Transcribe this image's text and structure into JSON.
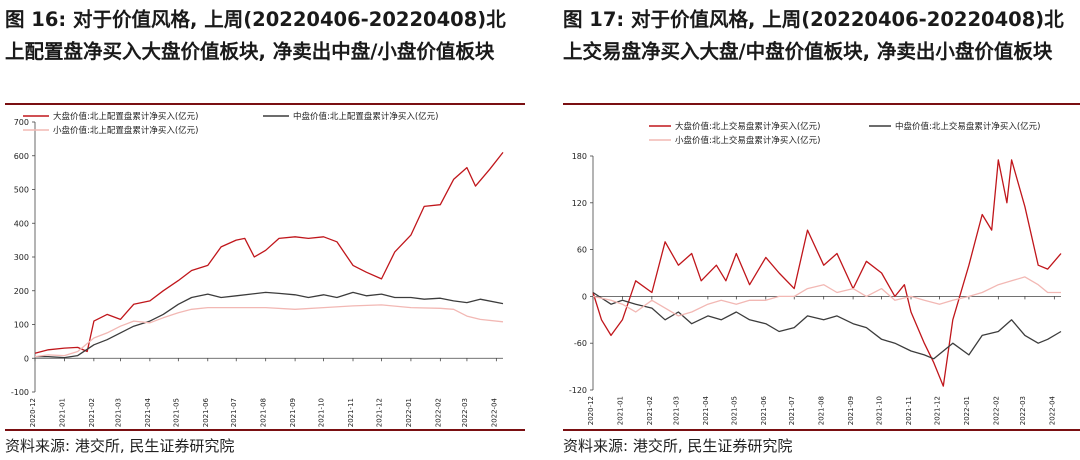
{
  "panels": [
    {
      "title": "图 16: 对于价值风格, 上周(20220406-20220408)北上配置盘净买入大盘价值板块, 净卖出中盘/小盘价值板块",
      "source": "资料来源: 港交所, 民生证券研究院"
    },
    {
      "title": "图 17: 对于价值风格, 上周(20220406-20220408)北上交易盘净买入大盘/中盘价值板块, 净卖出小盘价值板块",
      "source": "资料来源: 港交所, 民生证券研究院"
    }
  ],
  "chart_data": [
    {
      "type": "line",
      "title": "",
      "xlabel": "",
      "ylabel": "",
      "ylim": [
        -100,
        700
      ],
      "yticks": [
        -100,
        0,
        100,
        200,
        300,
        400,
        500,
        600,
        700
      ],
      "xlim": [
        "2020-12",
        "2022-04-08"
      ],
      "xticks": [
        "2020-12",
        "2021-01",
        "2021-02",
        "2021-03",
        "2021-04",
        "2021-05",
        "2021-06",
        "2021-07",
        "2021-08",
        "2021-09",
        "2021-10",
        "2021-11",
        "2021-12",
        "2022-01",
        "2022-02",
        "2022-03",
        "2022-04"
      ],
      "grid": false,
      "legend_position": "top",
      "series": [
        {
          "name": "大盘价值:北上配置盘累计净买入(亿元)",
          "color": "#c0161b",
          "points": [
            [
              "2020-12-01",
              15
            ],
            [
              "2020-12-15",
              25
            ],
            [
              "2021-01-01",
              30
            ],
            [
              "2021-01-15",
              32
            ],
            [
              "2021-01-25",
              20
            ],
            [
              "2021-02-01",
              110
            ],
            [
              "2021-02-15",
              130
            ],
            [
              "2021-03-01",
              115
            ],
            [
              "2021-03-15",
              160
            ],
            [
              "2021-04-01",
              170
            ],
            [
              "2021-04-15",
              200
            ],
            [
              "2021-05-01",
              230
            ],
            [
              "2021-05-15",
              260
            ],
            [
              "2021-06-01",
              275
            ],
            [
              "2021-06-15",
              330
            ],
            [
              "2021-07-01",
              350
            ],
            [
              "2021-07-10",
              355
            ],
            [
              "2021-07-20",
              300
            ],
            [
              "2021-08-01",
              320
            ],
            [
              "2021-08-15",
              355
            ],
            [
              "2021-09-01",
              360
            ],
            [
              "2021-09-15",
              355
            ],
            [
              "2021-10-01",
              360
            ],
            [
              "2021-10-15",
              345
            ],
            [
              "2021-11-01",
              275
            ],
            [
              "2021-11-15",
              255
            ],
            [
              "2021-12-01",
              235
            ],
            [
              "2021-12-15",
              315
            ],
            [
              "2022-01-01",
              365
            ],
            [
              "2022-01-15",
              450
            ],
            [
              "2022-02-01",
              455
            ],
            [
              "2022-02-15",
              530
            ],
            [
              "2022-03-01",
              565
            ],
            [
              "2022-03-10",
              510
            ],
            [
              "2022-03-25",
              560
            ],
            [
              "2022-04-08",
              610
            ]
          ]
        },
        {
          "name": "中盘价值:北上配置盘累计净买入(亿元)",
          "color": "#3c3c3c",
          "points": [
            [
              "2020-12-01",
              5
            ],
            [
              "2020-12-15",
              5
            ],
            [
              "2021-01-01",
              2
            ],
            [
              "2021-01-15",
              8
            ],
            [
              "2021-02-01",
              40
            ],
            [
              "2021-02-15",
              55
            ],
            [
              "2021-03-01",
              75
            ],
            [
              "2021-03-15",
              95
            ],
            [
              "2021-04-01",
              110
            ],
            [
              "2021-04-15",
              130
            ],
            [
              "2021-05-01",
              160
            ],
            [
              "2021-05-15",
              180
            ],
            [
              "2021-06-01",
              190
            ],
            [
              "2021-06-15",
              180
            ],
            [
              "2021-07-01",
              185
            ],
            [
              "2021-08-01",
              195
            ],
            [
              "2021-08-15",
              192
            ],
            [
              "2021-09-01",
              188
            ],
            [
              "2021-09-15",
              180
            ],
            [
              "2021-10-01",
              188
            ],
            [
              "2021-10-15",
              180
            ],
            [
              "2021-11-01",
              195
            ],
            [
              "2021-11-15",
              185
            ],
            [
              "2021-12-01",
              190
            ],
            [
              "2021-12-15",
              180
            ],
            [
              "2022-01-01",
              180
            ],
            [
              "2022-01-15",
              175
            ],
            [
              "2022-02-01",
              178
            ],
            [
              "2022-02-15",
              170
            ],
            [
              "2022-03-01",
              165
            ],
            [
              "2022-03-15",
              175
            ],
            [
              "2022-04-08",
              162
            ]
          ]
        },
        {
          "name": "小盘价值:北上配置盘累计净买入(亿元)",
          "color": "#f2b8b4",
          "points": [
            [
              "2020-12-01",
              5
            ],
            [
              "2020-12-15",
              10
            ],
            [
              "2021-01-01",
              8
            ],
            [
              "2021-01-15",
              20
            ],
            [
              "2021-02-01",
              60
            ],
            [
              "2021-02-15",
              75
            ],
            [
              "2021-03-01",
              95
            ],
            [
              "2021-03-15",
              110
            ],
            [
              "2021-04-01",
              105
            ],
            [
              "2021-04-15",
              120
            ],
            [
              "2021-05-01",
              135
            ],
            [
              "2021-05-15",
              145
            ],
            [
              "2021-06-01",
              150
            ],
            [
              "2021-07-01",
              150
            ],
            [
              "2021-08-01",
              150
            ],
            [
              "2021-09-01",
              145
            ],
            [
              "2021-10-01",
              150
            ],
            [
              "2021-11-01",
              155
            ],
            [
              "2021-12-01",
              158
            ],
            [
              "2022-01-01",
              150
            ],
            [
              "2022-02-01",
              148
            ],
            [
              "2022-02-15",
              145
            ],
            [
              "2022-03-01",
              125
            ],
            [
              "2022-03-15",
              115
            ],
            [
              "2022-04-08",
              108
            ]
          ]
        }
      ]
    },
    {
      "type": "line",
      "title": "",
      "xlabel": "",
      "ylabel": "",
      "ylim": [
        -120,
        180
      ],
      "yticks": [
        -120,
        -60,
        0,
        60,
        120,
        180
      ],
      "xlim": [
        "2020-12",
        "2022-04-08"
      ],
      "xticks": [
        "2020-12",
        "2021-01",
        "2021-02",
        "2021-03",
        "2021-04",
        "2021-05",
        "2021-06",
        "2021-07",
        "2021-08",
        "2021-09",
        "2021-10",
        "2021-11",
        "2021-12",
        "2022-01",
        "2022-02",
        "2022-03",
        "2022-04"
      ],
      "grid": false,
      "legend_position": "top",
      "series": [
        {
          "name": "大盘价值:北上交易盘累计净买入(亿元)",
          "color": "#c0161b",
          "points": [
            [
              "2020-12-01",
              5
            ],
            [
              "2020-12-10",
              -30
            ],
            [
              "2020-12-20",
              -50
            ],
            [
              "2021-01-01",
              -30
            ],
            [
              "2021-01-15",
              20
            ],
            [
              "2021-02-01",
              5
            ],
            [
              "2021-02-15",
              70
            ],
            [
              "2021-03-01",
              40
            ],
            [
              "2021-03-15",
              55
            ],
            [
              "2021-03-25",
              20
            ],
            [
              "2021-04-10",
              40
            ],
            [
              "2021-04-20",
              20
            ],
            [
              "2021-05-01",
              55
            ],
            [
              "2021-05-15",
              15
            ],
            [
              "2021-06-01",
              50
            ],
            [
              "2021-06-15",
              30
            ],
            [
              "2021-07-01",
              10
            ],
            [
              "2021-07-15",
              85
            ],
            [
              "2021-08-01",
              40
            ],
            [
              "2021-08-15",
              55
            ],
            [
              "2021-09-01",
              10
            ],
            [
              "2021-09-15",
              45
            ],
            [
              "2021-10-01",
              30
            ],
            [
              "2021-10-15",
              0
            ],
            [
              "2021-10-25",
              15
            ],
            [
              "2021-11-01",
              -20
            ],
            [
              "2021-11-15",
              -60
            ],
            [
              "2021-11-25",
              -85
            ],
            [
              "2021-12-05",
              -115
            ],
            [
              "2021-12-15",
              -30
            ],
            [
              "2022-01-01",
              40
            ],
            [
              "2022-01-15",
              105
            ],
            [
              "2022-01-25",
              85
            ],
            [
              "2022-02-01",
              175
            ],
            [
              "2022-02-10",
              120
            ],
            [
              "2022-02-15",
              175
            ],
            [
              "2022-03-01",
              115
            ],
            [
              "2022-03-15",
              40
            ],
            [
              "2022-03-25",
              35
            ],
            [
              "2022-04-08",
              55
            ]
          ]
        },
        {
          "name": "中盘价值:北上交易盘累计净买入(亿元)",
          "color": "#3c3c3c",
          "points": [
            [
              "2020-12-01",
              5
            ],
            [
              "2020-12-20",
              -10
            ],
            [
              "2021-01-01",
              -5
            ],
            [
              "2021-01-15",
              -10
            ],
            [
              "2021-02-01",
              -15
            ],
            [
              "2021-02-15",
              -30
            ],
            [
              "2021-03-01",
              -20
            ],
            [
              "2021-03-15",
              -35
            ],
            [
              "2021-04-01",
              -25
            ],
            [
              "2021-04-15",
              -30
            ],
            [
              "2021-05-01",
              -20
            ],
            [
              "2021-05-15",
              -30
            ],
            [
              "2021-06-01",
              -35
            ],
            [
              "2021-06-15",
              -45
            ],
            [
              "2021-07-01",
              -40
            ],
            [
              "2021-07-15",
              -25
            ],
            [
              "2021-08-01",
              -30
            ],
            [
              "2021-08-15",
              -25
            ],
            [
              "2021-09-01",
              -35
            ],
            [
              "2021-09-15",
              -40
            ],
            [
              "2021-10-01",
              -55
            ],
            [
              "2021-10-15",
              -60
            ],
            [
              "2021-11-01",
              -70
            ],
            [
              "2021-11-15",
              -75
            ],
            [
              "2021-11-25",
              -80
            ],
            [
              "2021-12-05",
              -70
            ],
            [
              "2021-12-15",
              -60
            ],
            [
              "2022-01-01",
              -75
            ],
            [
              "2022-01-15",
              -50
            ],
            [
              "2022-02-01",
              -45
            ],
            [
              "2022-02-15",
              -30
            ],
            [
              "2022-03-01",
              -50
            ],
            [
              "2022-03-15",
              -60
            ],
            [
              "2022-03-25",
              -55
            ],
            [
              "2022-04-08",
              -45
            ]
          ]
        },
        {
          "name": "小盘价值:北上交易盘累计净买入(亿元)",
          "color": "#f2b8b4",
          "points": [
            [
              "2020-12-01",
              0
            ],
            [
              "2020-12-20",
              -5
            ],
            [
              "2021-01-01",
              -10
            ],
            [
              "2021-01-15",
              -20
            ],
            [
              "2021-02-01",
              -5
            ],
            [
              "2021-02-15",
              -15
            ],
            [
              "2021-03-01",
              -25
            ],
            [
              "2021-03-15",
              -20
            ],
            [
              "2021-04-01",
              -10
            ],
            [
              "2021-04-15",
              -5
            ],
            [
              "2021-05-01",
              -10
            ],
            [
              "2021-05-15",
              -5
            ],
            [
              "2021-06-01",
              -5
            ],
            [
              "2021-06-15",
              0
            ],
            [
              "2021-07-01",
              0
            ],
            [
              "2021-07-15",
              10
            ],
            [
              "2021-08-01",
              15
            ],
            [
              "2021-08-15",
              5
            ],
            [
              "2021-09-01",
              10
            ],
            [
              "2021-09-15",
              0
            ],
            [
              "2021-10-01",
              10
            ],
            [
              "2021-10-15",
              -5
            ],
            [
              "2021-11-01",
              0
            ],
            [
              "2021-11-15",
              -5
            ],
            [
              "2021-12-01",
              -10
            ],
            [
              "2021-12-15",
              -5
            ],
            [
              "2022-01-01",
              0
            ],
            [
              "2022-01-15",
              5
            ],
            [
              "2022-02-01",
              15
            ],
            [
              "2022-02-15",
              20
            ],
            [
              "2022-03-01",
              25
            ],
            [
              "2022-03-15",
              15
            ],
            [
              "2022-03-25",
              5
            ],
            [
              "2022-04-08",
              5
            ]
          ]
        }
      ]
    }
  ]
}
